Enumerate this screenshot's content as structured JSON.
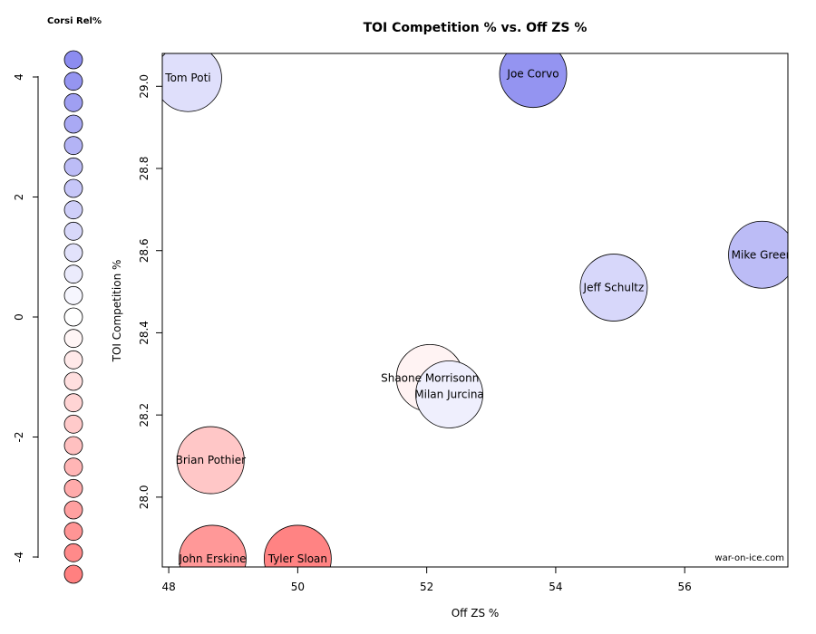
{
  "chart_data": {
    "type": "scatter",
    "title": "TOI Competition % vs. Off ZS %",
    "xlabel": "Off ZS %",
    "ylabel": "TOI Competition %",
    "xlim": [
      47.9,
      57.6
    ],
    "ylim": [
      27.83,
      29.08
    ],
    "x_ticks": [
      48,
      50,
      52,
      54,
      56
    ],
    "y_ticks": [
      28.0,
      28.2,
      28.4,
      28.6,
      28.8,
      29.0
    ],
    "watermark": "war-on-ice.com",
    "legend": {
      "title": "Corsi Rel%",
      "ticks": [
        4,
        2,
        0,
        -2,
        -4
      ],
      "range": [
        -4.3,
        4.3
      ],
      "swatches": [
        4.3,
        3.95,
        3.6,
        3.2,
        2.85,
        2.5,
        2.15,
        1.8,
        1.45,
        1.1,
        0.75,
        0.35,
        0.0,
        -0.35,
        -0.75,
        -1.1,
        -1.45,
        -1.8,
        -2.15,
        -2.5,
        -2.85,
        -3.2,
        -3.6,
        -3.95,
        -4.3
      ]
    },
    "points": [
      {
        "name": "Tom Poti",
        "x": 48.3,
        "y": 29.02,
        "corsi_rel": 1.2
      },
      {
        "name": "Joe Corvo",
        "x": 53.65,
        "y": 29.03,
        "corsi_rel": 4.0
      },
      {
        "name": "Mike Green",
        "x": 57.2,
        "y": 28.59,
        "corsi_rel": 2.5
      },
      {
        "name": "Jeff Schultz",
        "x": 54.9,
        "y": 28.51,
        "corsi_rel": 1.5
      },
      {
        "name": "Shaone Morrisonn",
        "x": 52.05,
        "y": 28.29,
        "corsi_rel": -0.4
      },
      {
        "name": "Milan Jurcina",
        "x": 52.35,
        "y": 28.25,
        "corsi_rel": 0.6
      },
      {
        "name": "Brian Pothier",
        "x": 48.65,
        "y": 28.09,
        "corsi_rel": -1.9
      },
      {
        "name": "John Erskine",
        "x": 48.68,
        "y": 27.85,
        "corsi_rel": -3.5
      },
      {
        "name": "Tyler Sloan",
        "x": 50.0,
        "y": 27.85,
        "corsi_rel": -4.2
      }
    ]
  }
}
